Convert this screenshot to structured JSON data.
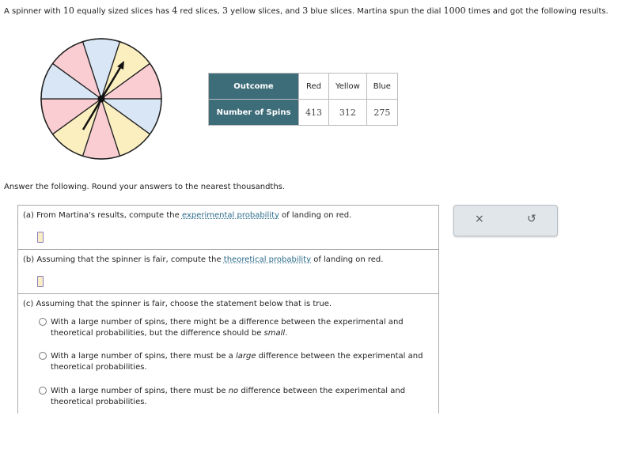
{
  "intro": {
    "p1": "A spinner with ",
    "n_slices": "10",
    "p2": " equally sized slices has ",
    "n_red": "4",
    "p3": " red slices, ",
    "n_yellow": "3",
    "p4": " yellow slices, and ",
    "n_blue": "3",
    "p5": " blue slices. Martina spun the dial ",
    "n_spins": "1000",
    "p6": " times and got the following results."
  },
  "spinner": {
    "slice_colors_clockwise_from_top": [
      "#d9e6f5",
      "#fbefc0",
      "#f9cdd2",
      "#d9e6f5",
      "#fbefc0",
      "#f9cdd2",
      "#fbefc0",
      "#f9cdd2",
      "#d9e6f5",
      "#f9cdd2"
    ]
  },
  "table": {
    "header_label": "Outcome",
    "row_label": "Number of Spins",
    "outcomes": [
      "Red",
      "Yellow",
      "Blue"
    ],
    "spins": [
      "413",
      "312",
      "275"
    ]
  },
  "answer_prompt": "Answer the following. Round your answers to the nearest thousandths.",
  "qa": {
    "pre": "(a) From Martina's results, compute the ",
    "link": "experimental probability",
    "post": " of landing on red."
  },
  "qb": {
    "pre": "(b) Assuming that the spinner is fair, compute the ",
    "link": "theoretical probability",
    "post": " of landing on red."
  },
  "qc": {
    "text": "(c) Assuming that the spinner is fair, choose the statement below that is true.",
    "o1": {
      "a": "With a large number of spins, there might be a difference between the experimental and theoretical probabilities, but the difference should be ",
      "em": "small",
      "b": "."
    },
    "o2": {
      "a": "With a large number of spins, there must be a ",
      "em": "large",
      "b": " difference between the experimental and theoretical probabilities."
    },
    "o3": {
      "a": "With a large number of spins, there must be ",
      "em": "no",
      "b": " difference between the experimental and theoretical probabilities."
    }
  },
  "tools": {
    "clear": "×",
    "undo": "↺"
  }
}
